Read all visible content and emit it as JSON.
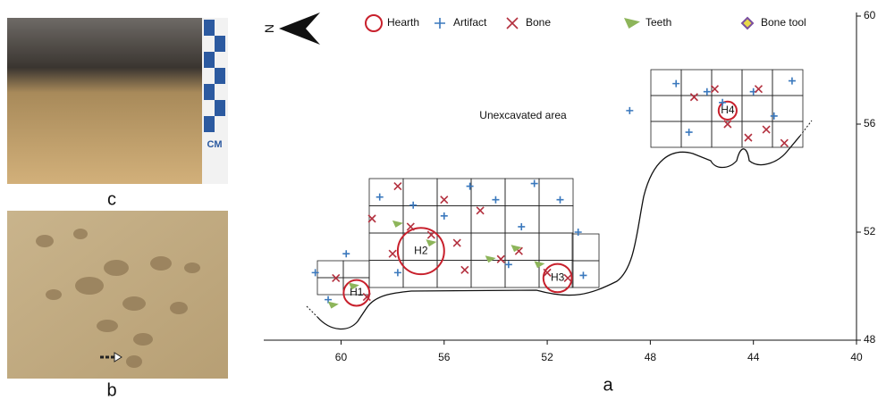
{
  "chart_data": {
    "type": "scatter",
    "xlim": [
      63,
      40
    ],
    "ylim": [
      48,
      60
    ],
    "xticks": [
      60,
      56,
      52,
      48,
      44,
      40
    ],
    "yticks": [
      48,
      52,
      56,
      60
    ],
    "annotation": "Unexcavated area",
    "panel_label": "a",
    "north": "N",
    "series": [
      {
        "name": "Hearth",
        "color": "#c8202c",
        "marker": "circle",
        "x": [
          59.4,
          56.9,
          51.6,
          45.0
        ],
        "values": [
          49.75,
          51.3,
          50.3,
          56.5
        ],
        "sizes": [
          0.5,
          0.9,
          0.55,
          0.35
        ],
        "labels": [
          "H1",
          "H2",
          "H3",
          "H4"
        ]
      },
      {
        "name": "Artifact",
        "color": "#3a78bd",
        "marker": "plus",
        "x": [
          61,
          59.8,
          58.5,
          57.2,
          56,
          55,
          54,
          53,
          52.5,
          51.5,
          50.8,
          50.6,
          53.5,
          57.8,
          60.5,
          47,
          45.8,
          44,
          42.5,
          46.5,
          45.2,
          48.8,
          43.2
        ],
        "values": [
          50.5,
          51.2,
          53.3,
          53.0,
          52.6,
          53.7,
          53.2,
          52.2,
          53.8,
          53.2,
          52.0,
          50.4,
          50.8,
          50.5,
          49.5,
          57.5,
          57.2,
          57.2,
          57.6,
          55.7,
          56.8,
          56.5,
          56.3
        ]
      },
      {
        "name": "Bone",
        "color": "#b3303e",
        "marker": "cross",
        "x": [
          60.2,
          59,
          58.8,
          58,
          57.3,
          56.5,
          55.5,
          54.6,
          53.8,
          53.1,
          52,
          51.2,
          55.2,
          57.8,
          56,
          45.5,
          45,
          44.2,
          43.5,
          42.8,
          43.8,
          46.3
        ],
        "values": [
          50.3,
          49.6,
          52.5,
          51.2,
          52.2,
          51.9,
          51.6,
          52.8,
          51.0,
          51.3,
          50.5,
          50.3,
          50.6,
          53.7,
          53.2,
          57.3,
          56.0,
          55.5,
          55.8,
          55.3,
          57.3,
          57.0
        ]
      },
      {
        "name": "Teeth",
        "color": "#8db55a",
        "marker": "triangle",
        "x": [
          60.3,
          57.8,
          56.5,
          54.2,
          53.2,
          52.3,
          59.5
        ],
        "values": [
          49.3,
          52.3,
          51.6,
          51.0,
          51.4,
          50.8,
          50.0
        ]
      },
      {
        "name": "Bone tool",
        "color": "#7a4fa0",
        "marker": "diamond",
        "x": [],
        "values": []
      }
    ]
  },
  "photos": {
    "c": {
      "label": "c",
      "scale": "CM"
    },
    "b": {
      "label": "b"
    }
  }
}
